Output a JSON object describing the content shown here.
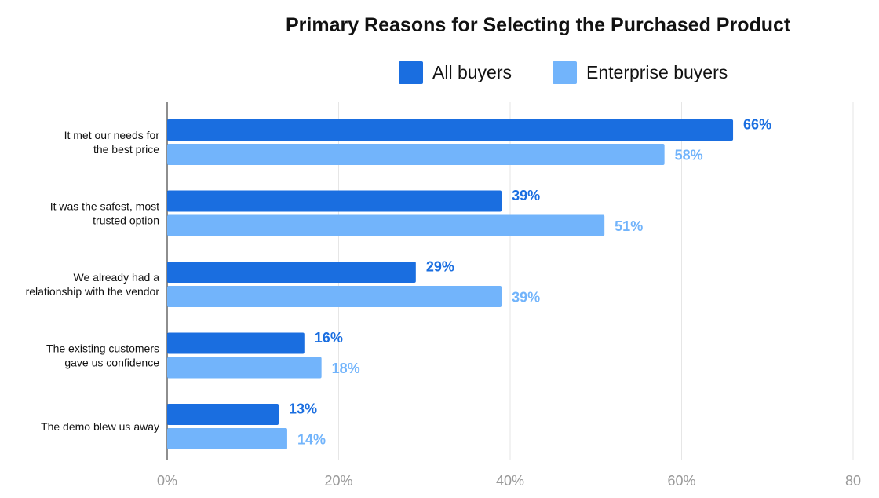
{
  "chart_data": {
    "type": "bar",
    "orientation": "horizontal",
    "title": "Primary Reasons for Selecting the Purchased Product",
    "categories": [
      [
        "It met our needs for",
        "the best price"
      ],
      [
        "It was the safest, most",
        "trusted option"
      ],
      [
        "We already had a",
        "relationship with the vendor"
      ],
      [
        "The existing customers",
        "gave us confidence"
      ],
      [
        "The demo blew us away"
      ]
    ],
    "series": [
      {
        "name": "All buyers",
        "color": "#1a6ee0",
        "values": [
          66,
          39,
          29,
          16,
          13
        ],
        "labels": [
          "66%",
          "39%",
          "29%",
          "16%",
          "13%"
        ]
      },
      {
        "name": "Enterprise buyers",
        "color": "#72b4fb",
        "values": [
          58,
          51,
          39,
          18,
          14
        ],
        "labels": [
          "58%",
          "51%",
          "39%",
          "18%",
          "14%"
        ]
      }
    ],
    "x_ticks": [
      {
        "value": 0,
        "label": "0%"
      },
      {
        "value": 20,
        "label": "20%"
      },
      {
        "value": 40,
        "label": "40%"
      },
      {
        "value": 60,
        "label": "60%"
      },
      {
        "value": 80,
        "label": "80"
      }
    ],
    "xlim": [
      0,
      80
    ],
    "grid": true,
    "legend_position": "top-right"
  }
}
